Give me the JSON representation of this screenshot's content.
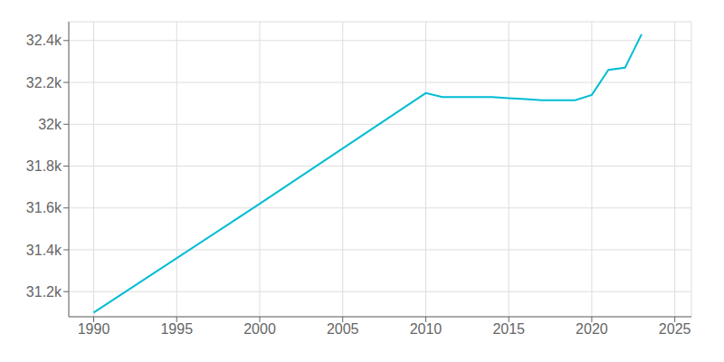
{
  "chart_data": {
    "type": "line",
    "x": [
      1990,
      2000,
      2010,
      2011,
      2012,
      2013,
      2014,
      2015,
      2016,
      2017,
      2018,
      2019,
      2020,
      2021,
      2022,
      2023
    ],
    "values": [
      31100,
      31620,
      32149,
      32130,
      32130,
      32130,
      32130,
      32125,
      32120,
      32115,
      32115,
      32115,
      32140,
      32260,
      32270,
      32430
    ],
    "color": "#00bcd4",
    "xlim": [
      1988.5,
      2026
    ],
    "ylim": [
      31080,
      32490
    ],
    "xticks": [
      1990,
      1995,
      2000,
      2005,
      2010,
      2015,
      2020,
      2025
    ],
    "yticks": [
      {
        "value": 31200,
        "label": "31.2k"
      },
      {
        "value": 31400,
        "label": "31.4k"
      },
      {
        "value": 31600,
        "label": "31.6k"
      },
      {
        "value": 31800,
        "label": "31.8k"
      },
      {
        "value": 32000,
        "label": "32k"
      },
      {
        "value": 32200,
        "label": "32.2k"
      },
      {
        "value": 32400,
        "label": "32.4k"
      }
    ],
    "grid": true
  }
}
